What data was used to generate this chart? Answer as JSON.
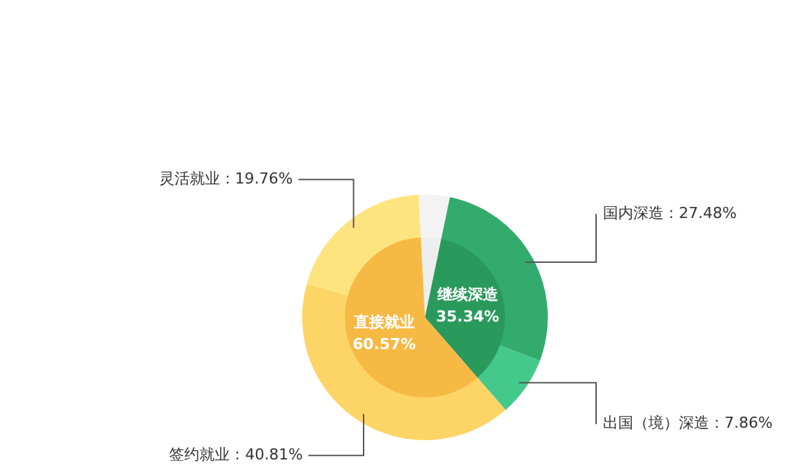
{
  "chart_data": [
    {
      "type": "pie",
      "categories": [
        null,
        "继续深造",
        "直接就业"
      ],
      "values": [
        4.09,
        35.34,
        60.57
      ],
      "colors": [
        "#eeeeee",
        "#2a9a5c",
        "#f6b944"
      ],
      "value_labels": [
        null,
        "35.34%",
        "60.57%"
      ]
    },
    {
      "type": "donut",
      "categories": [
        null,
        "国内深造",
        "出国（境）深造",
        "签约就业",
        "灵活就业"
      ],
      "values": [
        4.09,
        27.48,
        7.86,
        40.81,
        19.76
      ],
      "colors": [
        "#f3f3f3",
        "#33ab6c",
        "#44c98b",
        "#fdd466",
        "#fee47e"
      ],
      "value_labels": [
        null,
        "27.48%",
        "7.86%",
        "40.81%",
        "19.76%"
      ]
    }
  ]
}
